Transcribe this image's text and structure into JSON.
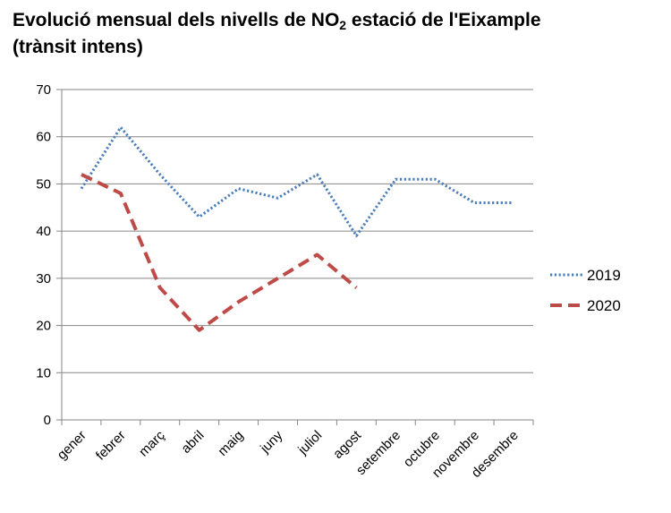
{
  "chart_data": {
    "type": "line",
    "title": {
      "part1": "Evolució mensual dels nivells de NO",
      "subscript": "2",
      "part2": " estació de l'Eixample",
      "line2": "(trànsit intens)"
    },
    "xlabel": "",
    "ylabel": "",
    "ylim": [
      0,
      70
    ],
    "yticks": [
      0,
      10,
      20,
      30,
      40,
      50,
      60,
      70
    ],
    "grid": true,
    "legend_position": "right",
    "categories": [
      "gener",
      "febrer",
      "març",
      "abril",
      "maig",
      "juny",
      "juliol",
      "agost",
      "setembre",
      "octubre",
      "novembre",
      "desembre"
    ],
    "series": [
      {
        "name": "2019",
        "style": "dotted",
        "color": "#4a7ebb",
        "values": [
          49,
          62,
          52,
          43,
          49,
          47,
          52,
          39,
          51,
          51,
          46,
          46
        ]
      },
      {
        "name": "2020",
        "style": "dashed",
        "color": "#be4b48",
        "values": [
          52,
          48,
          28,
          19,
          25,
          30,
          35,
          28,
          null,
          null,
          null,
          null
        ]
      }
    ]
  }
}
